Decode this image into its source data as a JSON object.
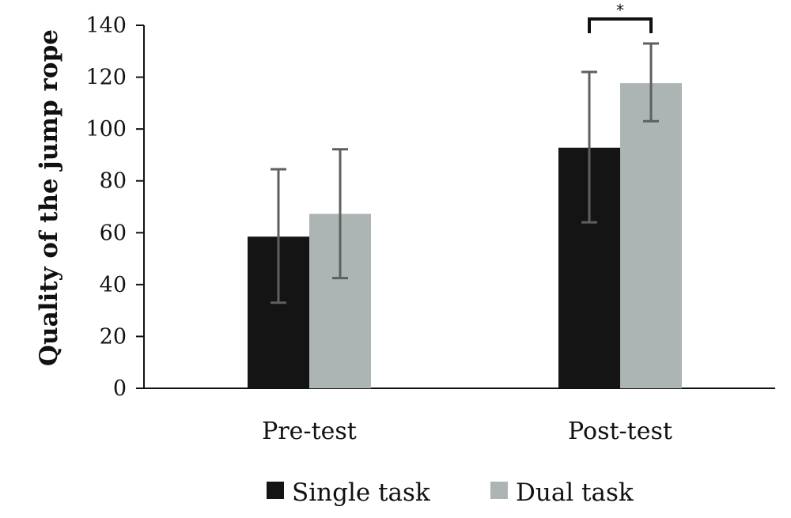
{
  "chart_data": {
    "type": "bar",
    "categories": [
      "Pre-test",
      "Post-test"
    ],
    "series": [
      {
        "name": "Single task",
        "color": "#141414",
        "values": [
          58.5,
          92.8
        ],
        "error_low": [
          33,
          64
        ],
        "error_high": [
          84.5,
          122
        ]
      },
      {
        "name": "Dual task",
        "color": "#adb5b4",
        "values": [
          67.3,
          117.7
        ],
        "error_low": [
          42.5,
          103
        ],
        "error_high": [
          92.2,
          133
        ]
      }
    ],
    "ylabel": "Quality of the jump rope",
    "xlabel": "",
    "ylim": [
      0,
      140
    ],
    "yticks": [
      0,
      20,
      40,
      60,
      80,
      100,
      120,
      140
    ],
    "grid": false,
    "legend_position": "bottom",
    "annotations": [
      {
        "text": "*",
        "category": "Post-test",
        "between_series": [
          "Single task",
          "Dual task"
        ]
      }
    ]
  }
}
